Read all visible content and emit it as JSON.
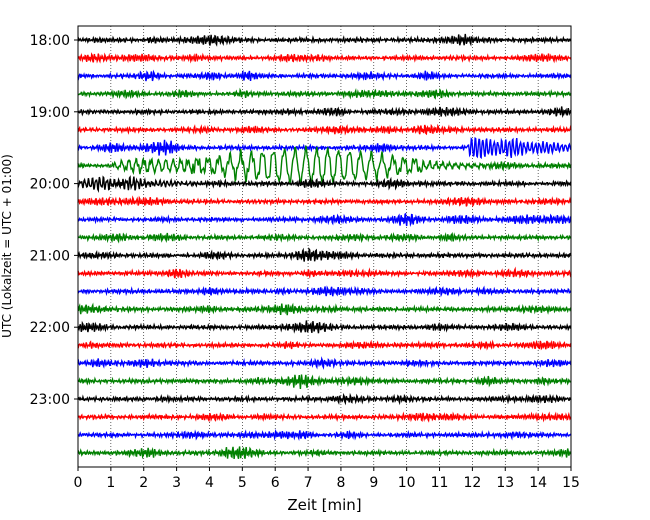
{
  "chart_data": {
    "type": "line",
    "title": "",
    "xlabel": "Zeit  [min]",
    "ylabel": "UTC (Lokalzeit = UTC + 01:00)",
    "xlim": [
      0,
      15
    ],
    "x_ticks": [
      "0",
      "1",
      "2",
      "3",
      "4",
      "5",
      "6",
      "7",
      "8",
      "9",
      "10",
      "11",
      "12",
      "13",
      "14",
      "15"
    ],
    "y_ticks": [
      {
        "label": "18:00",
        "row": 0
      },
      {
        "label": "19:00",
        "row": 4
      },
      {
        "label": "20:00",
        "row": 8
      },
      {
        "label": "21:00",
        "row": 12
      },
      {
        "label": "22:00",
        "row": 16
      },
      {
        "label": "23:00",
        "row": 20
      }
    ],
    "grid": {
      "vertical": true,
      "style": "dotted"
    },
    "trace_colors": [
      "#000000",
      "#ff0000",
      "#0000ff",
      "#008000"
    ],
    "rows": [
      {
        "time": "18:00",
        "color": "#000000",
        "event": null
      },
      {
        "time": "18:15",
        "color": "#ff0000",
        "event": null
      },
      {
        "time": "18:30",
        "color": "#0000ff",
        "event": null
      },
      {
        "time": "18:45",
        "color": "#008000",
        "event": null
      },
      {
        "time": "19:00",
        "color": "#000000",
        "event": null
      },
      {
        "time": "19:15",
        "color": "#ff0000",
        "event": null
      },
      {
        "time": "19:30",
        "color": "#0000ff",
        "event": {
          "onset_min": 11.8,
          "amplitude": 10,
          "duration_min": 3.2
        }
      },
      {
        "time": "19:45",
        "color": "#008000",
        "event": {
          "onset_min": 0.9,
          "amplitude": 9,
          "duration_min": 14.1,
          "surface_wave": [
            3.5,
            10.5
          ]
        }
      },
      {
        "time": "20:00",
        "color": "#000000",
        "event": {
          "onset_min": 0,
          "amplitude": 5,
          "duration_min": 3.5
        }
      },
      {
        "time": "20:15",
        "color": "#ff0000",
        "event": null
      },
      {
        "time": "20:30",
        "color": "#0000ff",
        "event": null
      },
      {
        "time": "20:45",
        "color": "#008000",
        "event": null
      },
      {
        "time": "21:00",
        "color": "#000000",
        "event": null
      },
      {
        "time": "21:15",
        "color": "#ff0000",
        "event": null
      },
      {
        "time": "21:30",
        "color": "#0000ff",
        "event": null
      },
      {
        "time": "21:45",
        "color": "#008000",
        "event": null
      },
      {
        "time": "22:00",
        "color": "#000000",
        "event": null
      },
      {
        "time": "22:15",
        "color": "#ff0000",
        "event": null
      },
      {
        "time": "22:30",
        "color": "#0000ff",
        "event": null
      },
      {
        "time": "22:45",
        "color": "#008000",
        "event": null
      },
      {
        "time": "23:00",
        "color": "#000000",
        "event": null
      },
      {
        "time": "23:15",
        "color": "#ff0000",
        "event": null
      },
      {
        "time": "23:30",
        "color": "#0000ff",
        "event": null
      },
      {
        "time": "23:45",
        "color": "#008000",
        "event": null
      }
    ]
  }
}
